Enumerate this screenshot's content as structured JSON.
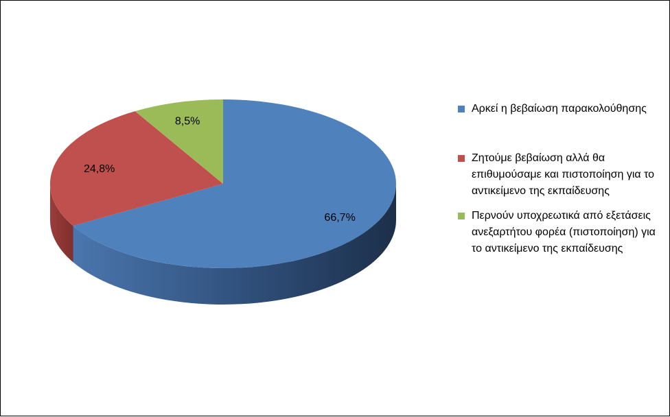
{
  "chart_data": {
    "type": "pie",
    "style": "3d",
    "title": "",
    "categories": [
      "Αρκεί η βεβαίωση παρακολούθησης",
      "Ζητούμε βεβαίωση αλλά θα επιθυμούσαμε και πιστοποίηση για το αντικείμενο της εκπαίδευσης",
      "Περνούν υποχρεωτικά από εξετάσεις ανεξαρτήτου φορέα (πιστοποίηση) για το αντικείμενο της εκπαίδευσης"
    ],
    "values": [
      66.7,
      24.8,
      8.5
    ],
    "value_labels": [
      "66,7%",
      "24,8%",
      "8,5%"
    ],
    "colors": [
      "#4F81BD",
      "#C0504D",
      "#9BBB59"
    ],
    "legend_placement": "right"
  }
}
